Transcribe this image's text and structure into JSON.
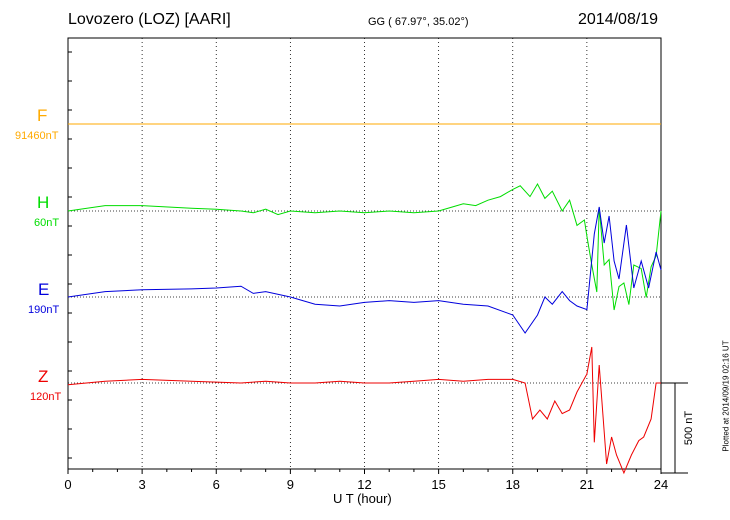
{
  "header": {
    "station": "Lovozero (LOZ)  [AARI]",
    "coords": "GG ( 67.97°,  35.02°)",
    "date": "2014/08/19"
  },
  "footer": {
    "plotted": "Plotted at 2014/09/19 02:16 UT"
  },
  "chart_data": {
    "type": "line",
    "title": "",
    "xlabel": "U T (hour)",
    "ylabel": "",
    "xlim": [
      0,
      24
    ],
    "x_ticks": [
      0,
      3,
      6,
      9,
      12,
      15,
      18,
      21,
      24
    ],
    "x_tick_labels": [
      "0",
      "3",
      "6",
      "9",
      "12",
      "15",
      "18",
      "21",
      "24"
    ],
    "grid": true,
    "scale_bar": {
      "label": "500 nT",
      "value_nT": 500
    },
    "channels": [
      {
        "name": "F",
        "base_label": "91460nT",
        "color": "#ffaa00",
        "x": [
          0,
          24
        ],
        "values": [
          0,
          0
        ]
      },
      {
        "name": "H",
        "base_label": "60nT",
        "color": "#00dd00",
        "x": [
          0,
          1.5,
          3,
          5,
          6,
          7,
          7.5,
          8,
          8.5,
          9,
          10,
          11,
          12,
          13,
          14,
          15,
          15.5,
          16,
          16.5,
          17,
          17.5,
          18,
          18.3,
          18.7,
          19,
          19.3,
          19.6,
          20,
          20.3,
          20.6,
          20.9,
          21.0,
          21.2,
          21.4,
          21.5,
          21.7,
          21.9,
          22.1,
          22.3,
          22.5,
          22.7,
          22.9,
          23.2,
          23.4,
          23.6,
          23.8,
          24
        ],
        "values": [
          0,
          30,
          30,
          15,
          10,
          0,
          -10,
          10,
          -20,
          0,
          -10,
          0,
          -10,
          0,
          -10,
          0,
          20,
          40,
          30,
          60,
          80,
          120,
          140,
          80,
          150,
          70,
          110,
          0,
          60,
          -80,
          -50,
          -140,
          -300,
          -450,
          20,
          -300,
          -270,
          -550,
          -420,
          -400,
          -520,
          -300,
          -320,
          -480,
          -310,
          -250,
          0
        ]
      },
      {
        "name": "E",
        "base_label": "190nT",
        "color": "#0000dd",
        "x": [
          0,
          1.5,
          3,
          5,
          6,
          7,
          7.5,
          8,
          9,
          10,
          11,
          12,
          13,
          14,
          15,
          16,
          17,
          18,
          18.5,
          19,
          19.3,
          19.6,
          20,
          20.3,
          20.6,
          21.0,
          21.3,
          21.5,
          21.7,
          21.9,
          22.1,
          22.3,
          22.6,
          22.9,
          23.2,
          23.5,
          23.8,
          24
        ],
        "values": [
          0,
          30,
          40,
          45,
          50,
          60,
          20,
          30,
          0,
          -40,
          -50,
          -30,
          -20,
          -30,
          -20,
          -40,
          -50,
          -100,
          -200,
          -100,
          0,
          -40,
          30,
          -20,
          -50,
          -70,
          350,
          500,
          300,
          450,
          200,
          100,
          400,
          50,
          200,
          50,
          250,
          150
        ]
      },
      {
        "name": "Z",
        "base_label": "120nT",
        "color": "#ee0000",
        "x": [
          0,
          1.5,
          3,
          5,
          7,
          8,
          9,
          10,
          11,
          12,
          13,
          14,
          15,
          16,
          17,
          18,
          18.5,
          18.8,
          19.1,
          19.4,
          19.7,
          20.0,
          20.3,
          20.6,
          21.0,
          21.2,
          21.3,
          21.5,
          21.8,
          22.0,
          22.2,
          22.5,
          22.8,
          23.1,
          23.3,
          23.6,
          23.8,
          24
        ],
        "values": [
          -10,
          10,
          20,
          10,
          0,
          10,
          0,
          0,
          10,
          0,
          0,
          10,
          20,
          10,
          20,
          20,
          0,
          -200,
          -150,
          -200,
          -100,
          -170,
          -150,
          -50,
          50,
          200,
          -330,
          100,
          -450,
          -300,
          -400,
          -500,
          -400,
          -320,
          -300,
          -200,
          0,
          0
        ]
      }
    ]
  }
}
